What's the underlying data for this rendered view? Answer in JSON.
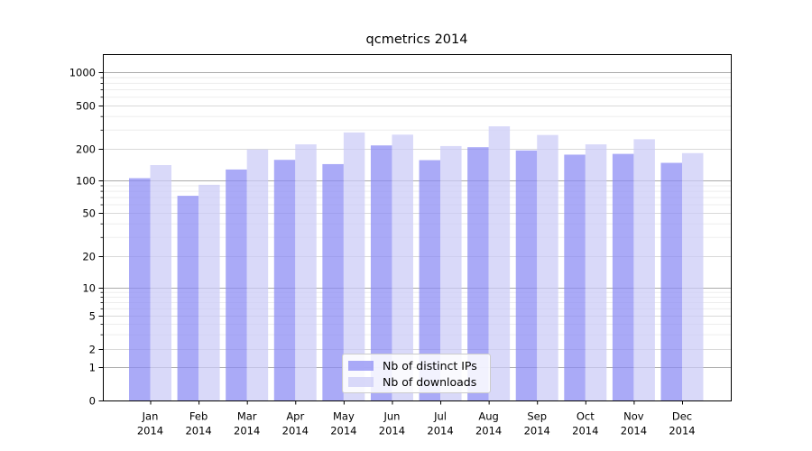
{
  "chart_data": {
    "type": "bar",
    "title": "qcmetrics 2014",
    "categories": [
      "Jan",
      "Feb",
      "Mar",
      "Apr",
      "May",
      "Jun",
      "Jul",
      "Aug",
      "Sep",
      "Oct",
      "Nov",
      "Dec"
    ],
    "x_year_label": "2014",
    "series": [
      {
        "name": "Nb of distinct IPs",
        "color": "#8989f4",
        "values": [
          105,
          72,
          127,
          157,
          143,
          215,
          156,
          207,
          193,
          176,
          179,
          147
        ]
      },
      {
        "name": "Nb of downloads",
        "color": "#cacaf7",
        "values": [
          140,
          91,
          197,
          220,
          283,
          270,
          212,
          322,
          268,
          220,
          245,
          182
        ]
      }
    ],
    "yaxis": {
      "scale": "symlog",
      "major_ticks": [
        0,
        1,
        2,
        5,
        10,
        20,
        50,
        100,
        200,
        500,
        1000
      ],
      "decade_ticks": [
        1,
        10,
        100,
        1000
      ],
      "minor_gridlines": [
        3,
        4,
        6,
        7,
        8,
        9,
        30,
        40,
        60,
        70,
        80,
        90,
        300,
        400,
        600,
        700,
        800,
        900
      ],
      "ylim": [
        0,
        1000
      ]
    },
    "legend": {
      "position": "lower center"
    },
    "grid": "horizontal-only",
    "colors": {
      "decade_gridline": "#ababab",
      "major_gridline": "#d9d9d9",
      "minor_gridline": "#ededed",
      "axis": "#000000",
      "text": "#000000",
      "background": "#ffffff",
      "bar_opacity": 0.72
    }
  }
}
